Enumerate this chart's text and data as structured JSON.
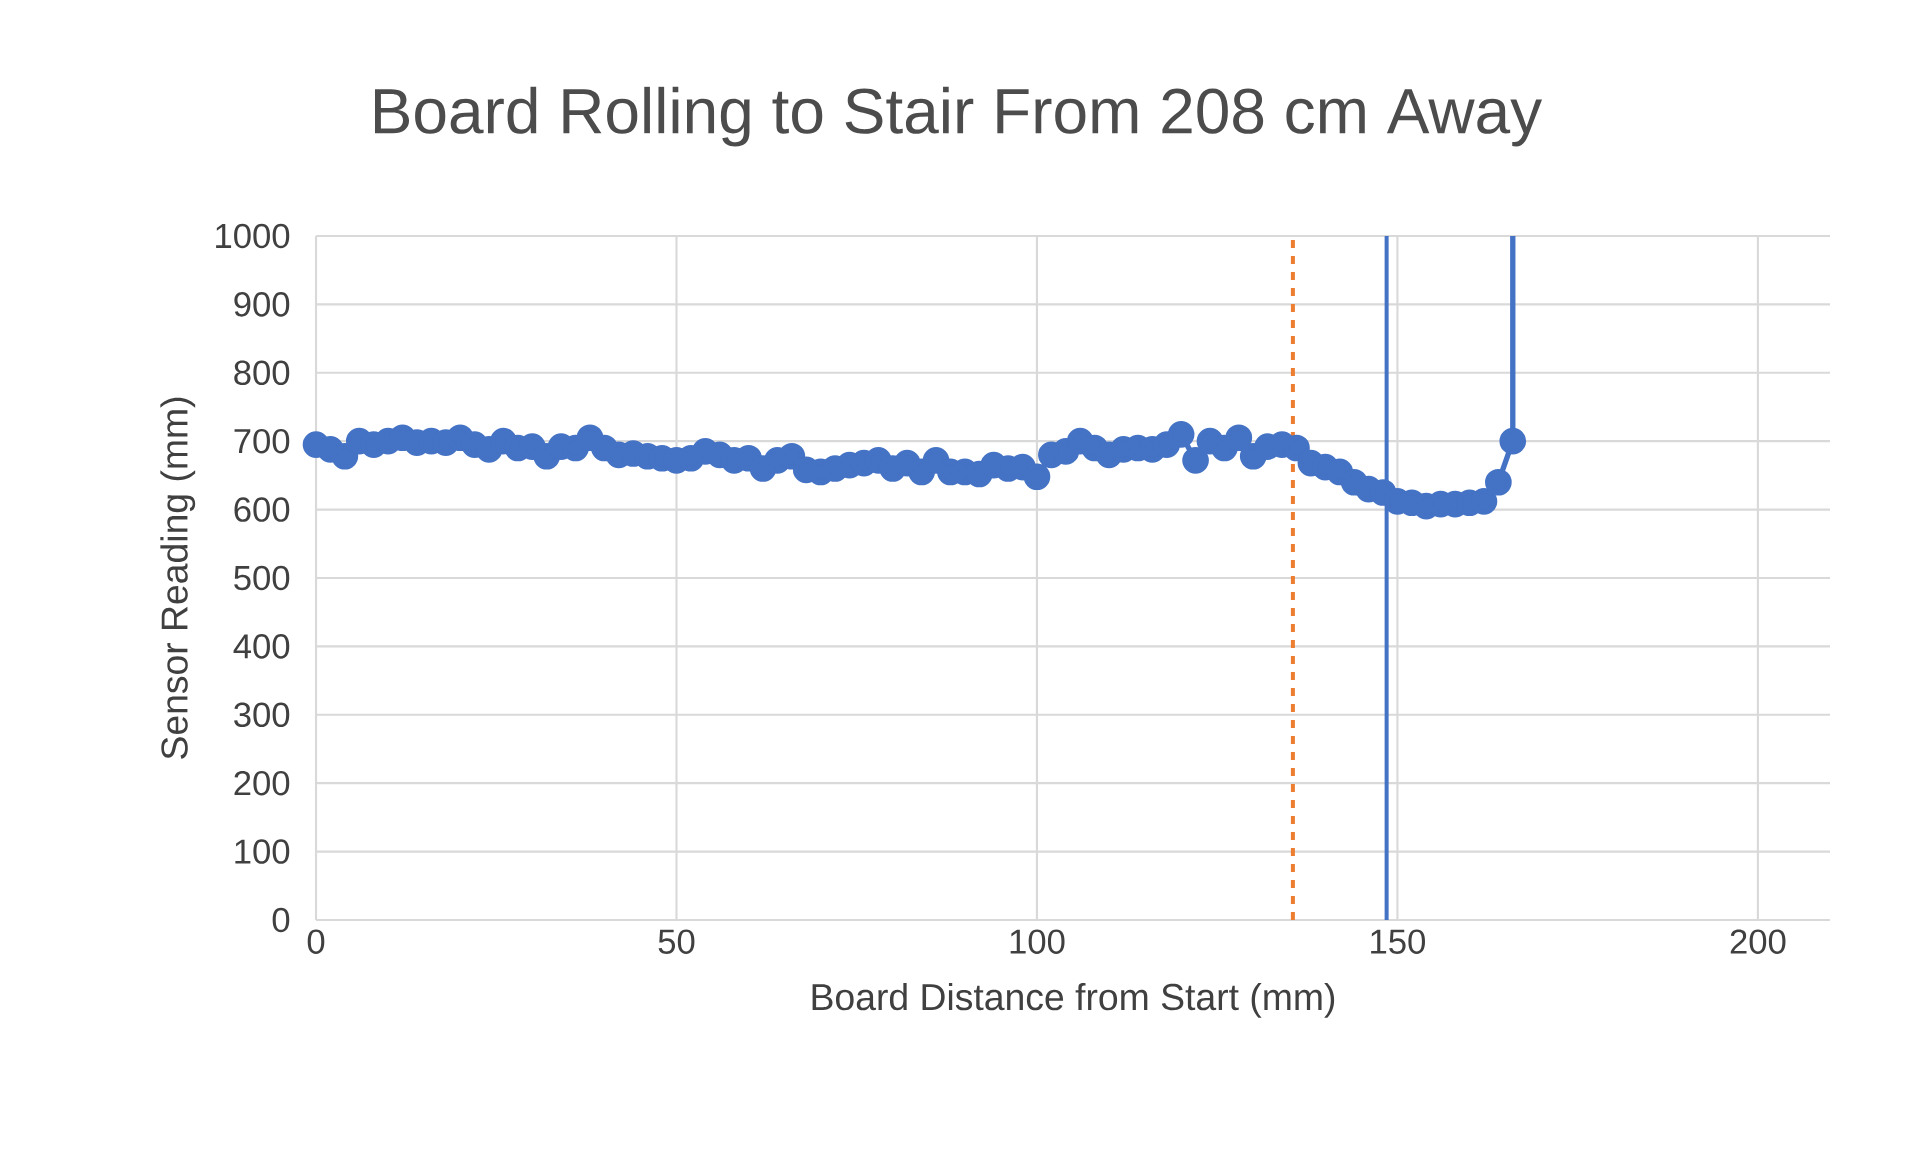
{
  "chart_data": {
    "type": "line",
    "title": "Board Rolling to Stair From 208 cm Away",
    "xlabel": "Board Distance from Start (mm)",
    "ylabel": "Sensor Reading (mm)",
    "xlim": [
      0,
      210
    ],
    "xticks": [
      0,
      50,
      100,
      150,
      200
    ],
    "ylim": [
      0,
      1000
    ],
    "yticks": [
      0,
      100,
      200,
      300,
      400,
      500,
      600,
      700,
      800,
      900,
      1000
    ],
    "grid": true,
    "marker": "circle",
    "line_style": "solid",
    "series": [
      {
        "color": "#4472c4",
        "x": [
          0,
          2,
          4,
          6,
          8,
          10,
          12,
          14,
          16,
          18,
          20,
          22,
          24,
          26,
          28,
          30,
          32,
          34,
          36,
          38,
          40,
          42,
          44,
          46,
          48,
          50,
          52,
          54,
          56,
          58,
          60,
          62,
          64,
          66,
          68,
          70,
          72,
          74,
          76,
          78,
          80,
          82,
          84,
          86,
          88,
          90,
          92,
          94,
          96,
          98,
          100,
          102,
          104,
          106,
          108,
          110,
          112,
          114,
          116,
          118,
          120,
          122,
          124,
          126,
          128,
          130,
          132,
          134,
          136,
          138,
          140,
          142,
          144,
          146,
          148,
          150,
          152,
          154,
          156,
          158,
          160,
          162,
          164,
          166,
          166
        ],
        "values": [
          695,
          688,
          678,
          700,
          695,
          700,
          705,
          698,
          700,
          698,
          705,
          695,
          688,
          700,
          690,
          692,
          678,
          692,
          690,
          705,
          690,
          680,
          682,
          678,
          675,
          672,
          675,
          685,
          680,
          672,
          675,
          660,
          672,
          678,
          658,
          655,
          660,
          665,
          668,
          672,
          660,
          668,
          655,
          672,
          655,
          655,
          652,
          665,
          660,
          662,
          648,
          680,
          685,
          700,
          690,
          680,
          688,
          690,
          688,
          695,
          710,
          672,
          700,
          690,
          705,
          678,
          692,
          695,
          690,
          668,
          662,
          655,
          640,
          630,
          625,
          612,
          610,
          605,
          608,
          608,
          610,
          612,
          640,
          700,
          1000
        ]
      }
    ],
    "ref_lines": [
      {
        "axis": "x",
        "value": 135.5,
        "color": "#ed7d31",
        "line_style": "dashed"
      },
      {
        "axis": "x",
        "value": 148.5,
        "color": "#4472c4",
        "line_style": "solid"
      }
    ]
  }
}
